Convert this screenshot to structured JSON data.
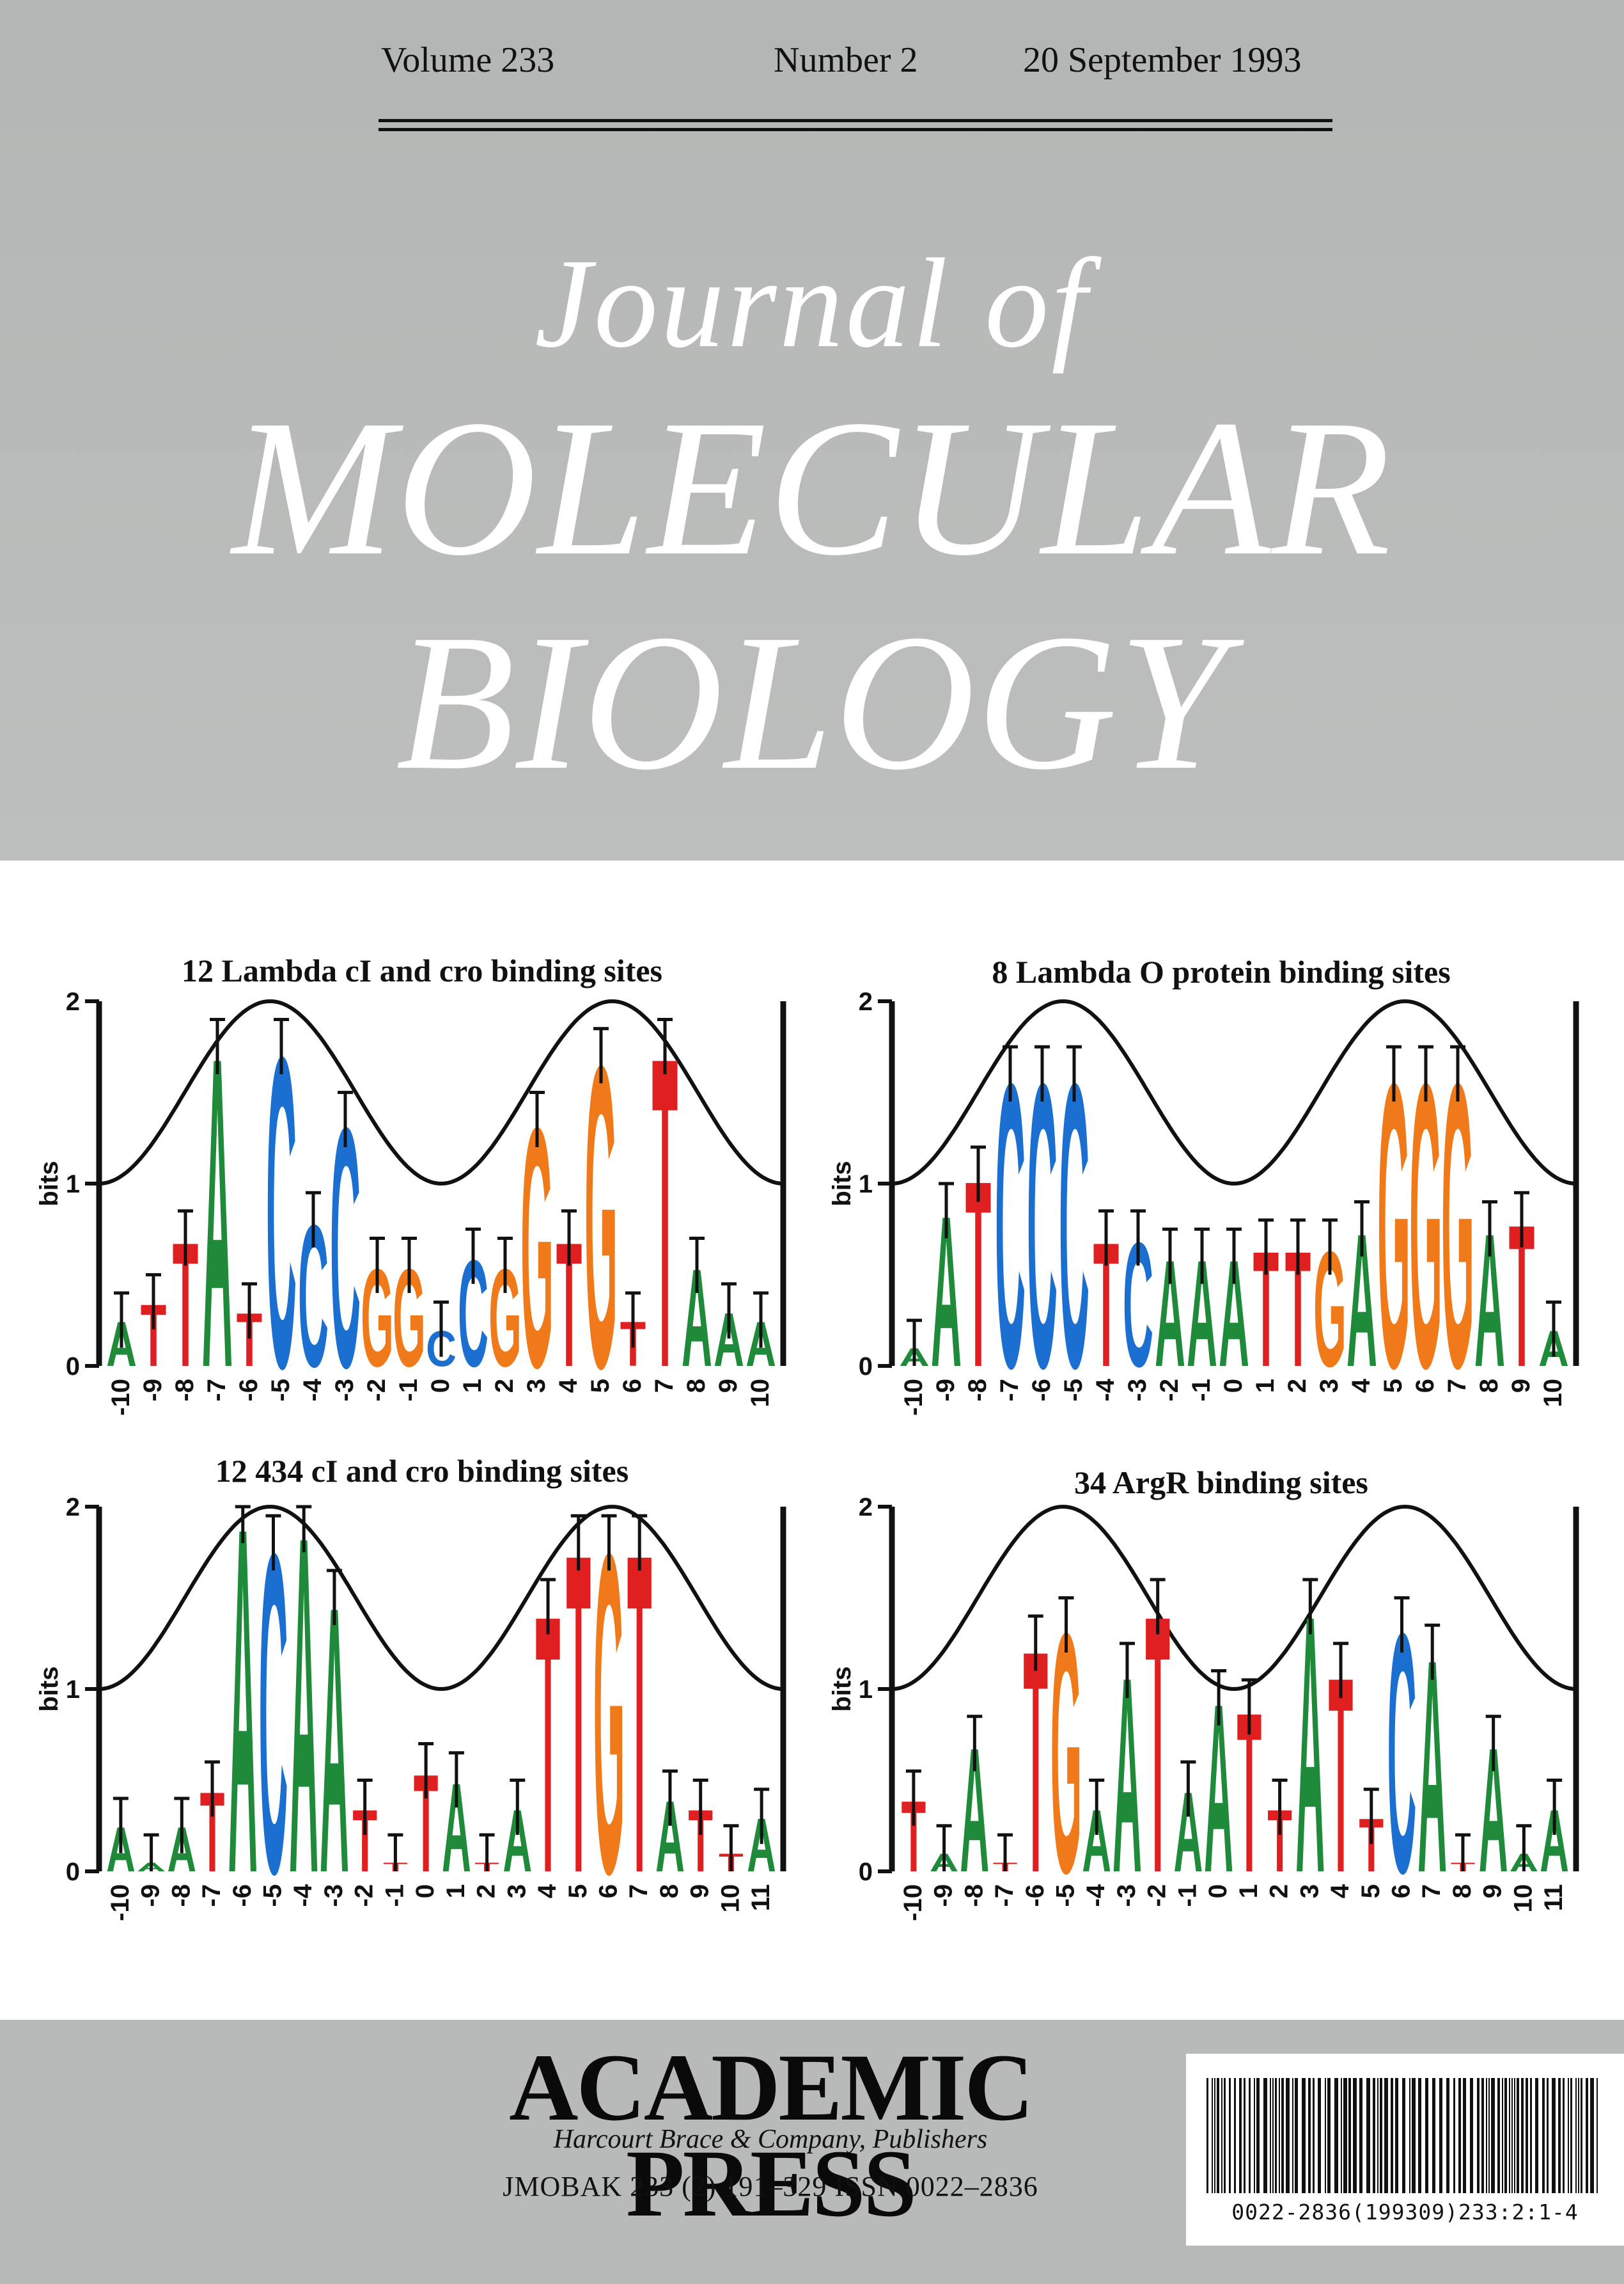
{
  "issue": {
    "volume": "Volume 233",
    "number": "Number 2",
    "date": "20 September 1993"
  },
  "masthead": {
    "journal_of": "Journal of",
    "line1": "MOLECULAR",
    "line2": "BIOLOGY"
  },
  "colors": {
    "A": "#1f8a3a",
    "C": "#1a6fd0",
    "G": "#f07a1a",
    "T": "#e02020",
    "curve": "#111111"
  },
  "chart_data": [
    {
      "type": "sequence-logo",
      "title": "12 Lambda cI and cro binding sites",
      "ylabel": "bits",
      "ylim": [
        0,
        2
      ],
      "yticks": [
        "0",
        "1",
        "2"
      ],
      "positions": [
        "-10",
        "-9",
        "-8",
        "-7",
        "-6",
        "-5",
        "-4",
        "-3",
        "-2",
        "-1",
        "0",
        "1",
        "2",
        "3",
        "4",
        "5",
        "6",
        "7",
        "8",
        "9",
        "10"
      ],
      "letters": [
        "A",
        "T",
        "T",
        "A",
        "T",
        "C",
        "C",
        "C",
        "G",
        "G",
        "C",
        "C",
        "G",
        "G",
        "T",
        "G",
        "T",
        "T",
        "A",
        "A",
        "A"
      ],
      "heights": [
        0.25,
        0.35,
        0.7,
        1.75,
        0.3,
        1.75,
        0.8,
        1.35,
        0.55,
        0.55,
        0.2,
        0.6,
        0.55,
        1.35,
        0.7,
        1.7,
        0.25,
        1.75,
        0.55,
        0.3,
        0.25
      ]
    },
    {
      "type": "sequence-logo",
      "title": "8 Lambda O protein binding sites",
      "ylabel": "bits",
      "ylim": [
        0,
        2
      ],
      "yticks": [
        "0",
        "1",
        "2"
      ],
      "positions": [
        "-10",
        "-9",
        "-8",
        "-7",
        "-6",
        "-5",
        "-4",
        "-3",
        "-2",
        "-1",
        "0",
        "1",
        "2",
        "3",
        "4",
        "5",
        "6",
        "7",
        "8",
        "9",
        "10"
      ],
      "letters": [
        "A",
        "A",
        "T",
        "C",
        "C",
        "C",
        "T",
        "C",
        "A",
        "A",
        "A",
        "T",
        "T",
        "G",
        "A",
        "G",
        "G",
        "G",
        "A",
        "T",
        "A"
      ],
      "heights": [
        0.1,
        0.85,
        1.05,
        1.6,
        1.6,
        1.6,
        0.7,
        0.7,
        0.6,
        0.6,
        0.6,
        0.65,
        0.65,
        0.65,
        0.75,
        1.6,
        1.6,
        1.6,
        0.75,
        0.8,
        0.2
      ]
    },
    {
      "type": "sequence-logo",
      "title": "12 434 cI and cro binding sites",
      "ylabel": "bits",
      "ylim": [
        0,
        2
      ],
      "yticks": [
        "0",
        "1",
        "2"
      ],
      "positions": [
        "-10",
        "-9",
        "-8",
        "-7",
        "-6",
        "-5",
        "-4",
        "-3",
        "-2",
        "-1",
        "0",
        "1",
        "2",
        "3",
        "4",
        "5",
        "6",
        "7",
        "8",
        "9",
        "10",
        "11"
      ],
      "letters": [
        "A",
        "A",
        "A",
        "T",
        "A",
        "C",
        "A",
        "A",
        "T",
        "T",
        "T",
        "A",
        "T",
        "A",
        "T",
        "T",
        "G",
        "T",
        "A",
        "T",
        "T",
        "A"
      ],
      "heights": [
        0.25,
        0.05,
        0.25,
        0.45,
        1.95,
        1.8,
        1.9,
        1.5,
        0.35,
        0.05,
        0.55,
        0.5,
        0.05,
        0.35,
        1.45,
        1.8,
        1.8,
        1.8,
        0.4,
        0.35,
        0.1,
        0.3
      ]
    },
    {
      "type": "sequence-logo",
      "title": "34 ArgR binding sites",
      "ylabel": "bits",
      "ylim": [
        0,
        2
      ],
      "yticks": [
        "0",
        "1",
        "2"
      ],
      "positions": [
        "-10",
        "-9",
        "-8",
        "-7",
        "-6",
        "-5",
        "-4",
        "-3",
        "-2",
        "-1",
        "0",
        "1",
        "2",
        "3",
        "4",
        "5",
        "6",
        "7",
        "8",
        "9",
        "10",
        "11"
      ],
      "letters": [
        "T",
        "A",
        "A",
        "T",
        "T",
        "G",
        "A",
        "A",
        "T",
        "A",
        "A",
        "T",
        "T",
        "A",
        "T",
        "T",
        "C",
        "A",
        "T",
        "A",
        "A",
        "A"
      ],
      "heights": [
        0.4,
        0.1,
        0.7,
        0.05,
        1.25,
        1.35,
        0.35,
        1.1,
        1.45,
        0.45,
        0.95,
        0.9,
        0.35,
        1.45,
        1.1,
        0.3,
        1.35,
        1.2,
        0.05,
        0.7,
        0.1,
        0.35
      ]
    }
  ],
  "footer": {
    "publisher": "ACADEMIC PRESS",
    "subline": "Harcourt Brace & Company, Publishers",
    "issn": "JMOBAK 233 (2) 191–329   ISSN 0022–2836",
    "barcode": "0022-2836(199309)233:2:1-4"
  }
}
